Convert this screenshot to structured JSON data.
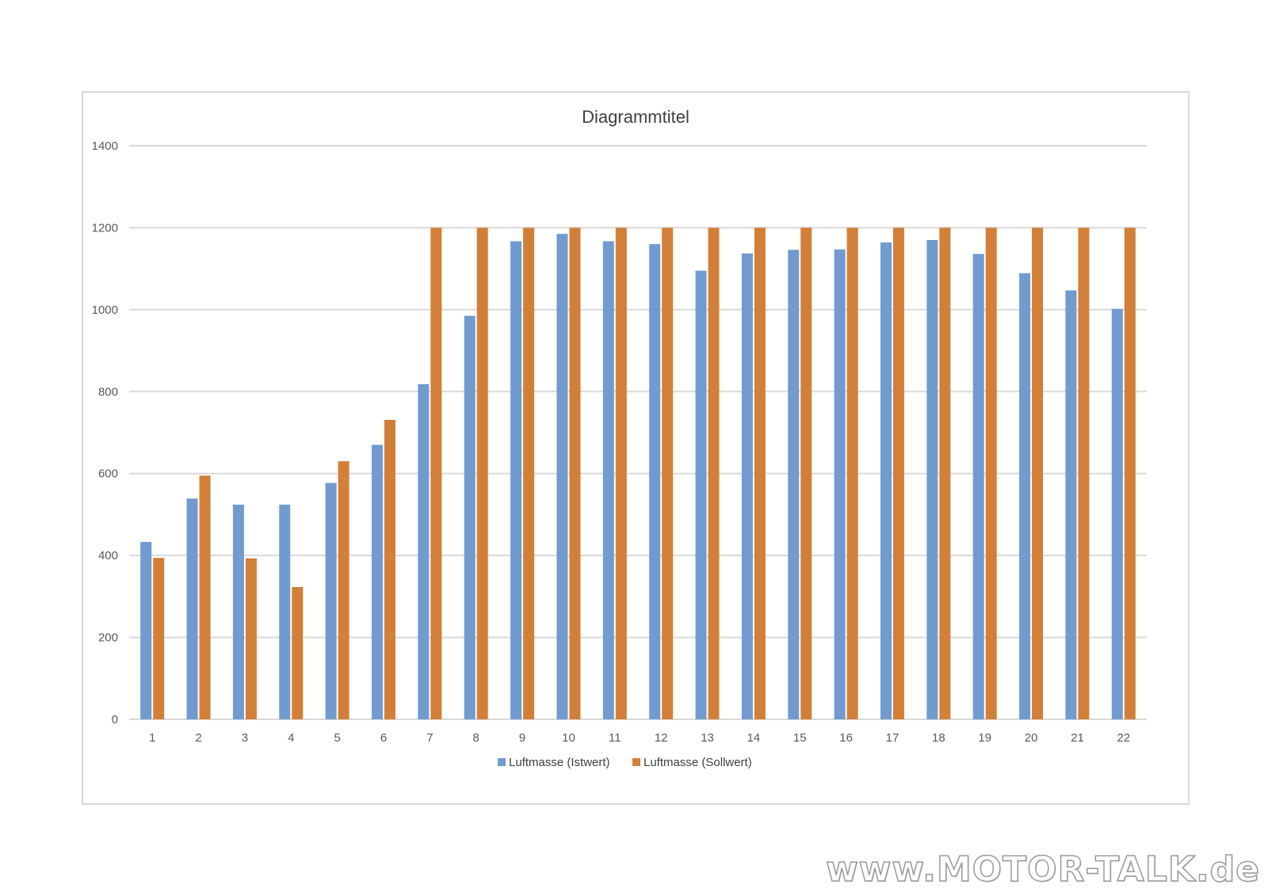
{
  "watermark": "www.MOTOR-TALK.de",
  "colors": {
    "istwert": "#6f9bd1",
    "sollwert": "#d47f36",
    "grid": "#d9d9d9",
    "text": "#595959"
  },
  "chart_data": {
    "type": "bar",
    "title": "Diagrammtitel",
    "xlabel": "",
    "ylabel": "",
    "ylim": [
      0,
      1400
    ],
    "yticks": [
      0,
      200,
      400,
      600,
      800,
      1000,
      1200,
      1400
    ],
    "grid": true,
    "legend_position": "bottom",
    "categories": [
      "1",
      "2",
      "3",
      "4",
      "5",
      "6",
      "7",
      "8",
      "9",
      "10",
      "11",
      "12",
      "13",
      "14",
      "15",
      "16",
      "17",
      "18",
      "19",
      "20",
      "21",
      "22"
    ],
    "series": [
      {
        "name": "Luftmasse (Istwert)",
        "color": "#6f9bd1",
        "values": [
          433,
          539,
          524,
          524,
          577,
          670,
          818,
          985,
          1167,
          1185,
          1167,
          1160,
          1095,
          1137,
          1146,
          1147,
          1164,
          1170,
          1136,
          1089,
          1047,
          1002
        ]
      },
      {
        "name": "Luftmasse (Sollwert)",
        "color": "#d47f36",
        "values": [
          394,
          595,
          393,
          323,
          630,
          731,
          1200,
          1200,
          1200,
          1200,
          1200,
          1200,
          1200,
          1200,
          1200,
          1200,
          1200,
          1200,
          1200,
          1200,
          1200,
          1200
        ]
      }
    ]
  }
}
